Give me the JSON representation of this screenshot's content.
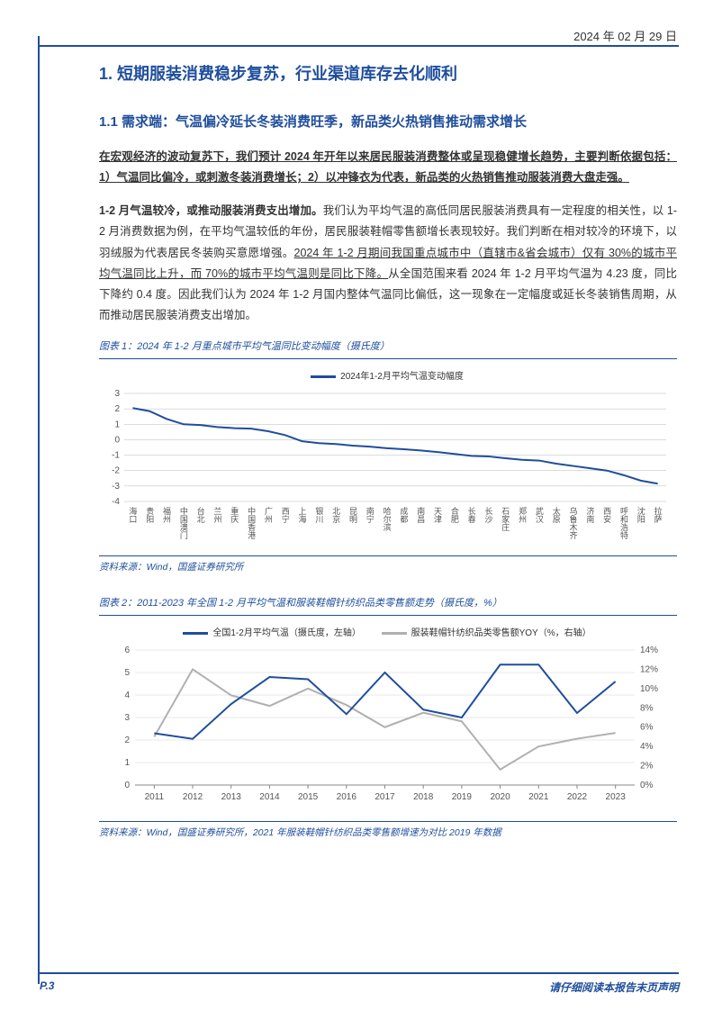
{
  "header": {
    "date": "2024 年 02 月 29 日"
  },
  "section1": {
    "number": "1.",
    "title": "短期服装消费稳步复苏，行业渠道库存去化顺利"
  },
  "section11": {
    "number": "1.1",
    "label": "需求端：",
    "title": "气温偏冷延长冬装消费旺季，新品类火热销售推动需求增长"
  },
  "para1": {
    "text_a": "在宏观经济的波动复苏下，我们预计 2024 年开年以来居民服装消费整体或呈现稳健增长趋势，主要判断依据包括：1）气温同比偏冷，或刺激冬装消费增长；2）以冲锋衣为代表，新品类的火热销售推动服装消费大盘走强。"
  },
  "para2": {
    "lead": "1-2 月气温较冷，或推动服装消费支出增加。",
    "body_a": "我们认为平均气温的高低同居民服装消费具有一定程度的相关性，以 1-2 月消费数据为例，在平均气温较低的年份，居民服装鞋帽零售额增长表现较好。我们判断在相对较冷的环境下，以羽绒服为代表居民冬装购买意愿增强。",
    "body_b": "2024 年 1-2 月期间我国重点城市中（直辖市&省会城市）仅有 30%的城市平均气温同比上升，而 70%的城市平均气温则是同比下降。",
    "body_c": "从全国范围来看 2024 年 1-2 月平均气温为 4.23 度，同比下降约 0.4 度。因此我们认为 2024 年 1-2 月国内整体气温同比偏低，这一现象在一定幅度或延长冬装销售周期，从而推动居民服装消费支出增加。"
  },
  "chart1": {
    "title": "图表 1：2024 年 1-2 月重点城市平均气温同比变动幅度（摄氏度）",
    "type": "line",
    "legend_label": "2024年1-2月平均气温变动幅度",
    "line_color": "#1f4e9c",
    "line_width": 2,
    "background_color": "#ffffff",
    "grid_color": "#b8b8b8",
    "ylim": [
      -4,
      3
    ],
    "ytick_step": 1,
    "yticks": [
      -4,
      -3,
      -2,
      -1,
      0,
      1,
      2,
      3
    ],
    "categories": [
      "海口",
      "贵阳",
      "福州",
      "中国澳门",
      "台北",
      "兰州",
      "重庆",
      "中国香港",
      "广州",
      "西宁",
      "上海",
      "银川",
      "北京",
      "昆明",
      "南宁",
      "哈尔滨",
      "成都",
      "南昌",
      "天津",
      "合肥",
      "长春",
      "长沙",
      "石家庄",
      "郑州",
      "武汉",
      "太原",
      "乌鲁木齐",
      "济南",
      "西安",
      "呼和浩特",
      "沈阳",
      "拉萨"
    ],
    "values": [
      2.05,
      1.85,
      1.35,
      1.0,
      0.95,
      0.82,
      0.75,
      0.72,
      0.55,
      0.3,
      -0.1,
      -0.22,
      -0.28,
      -0.38,
      -0.45,
      -0.55,
      -0.62,
      -0.7,
      -0.8,
      -0.92,
      -1.05,
      -1.08,
      -1.2,
      -1.3,
      -1.35,
      -1.55,
      -1.7,
      -1.85,
      -2.0,
      -2.3,
      -2.65,
      -2.85
    ],
    "axis_fontsize": 10,
    "label_fontsize": 9
  },
  "source1": {
    "text": "资料来源：Wind，国盛证券研究所"
  },
  "chart2": {
    "title": "图表 2：2011-2023 年全国 1-2 月平均气温和服装鞋帽针纺织品类零售额走势（摄氏度，%）",
    "type": "dual-line",
    "background_color": "#ffffff",
    "grid_color": "#d0d0d0",
    "legend": [
      {
        "label": "全国1-2月平均气温（摄氏度，左轴）",
        "color": "#1f4e9c"
      },
      {
        "label": "服装鞋帽针纺织品类零售额YOY（%，右轴）",
        "color": "#b0b0b0"
      }
    ],
    "line_width": 2,
    "categories": [
      "2011",
      "2012",
      "2013",
      "2014",
      "2015",
      "2016",
      "2017",
      "2018",
      "2019",
      "2020",
      "2021",
      "2022",
      "2023"
    ],
    "y_left": {
      "ylim": [
        0,
        6
      ],
      "ytick_step": 1,
      "yticks": [
        0,
        1,
        2,
        3,
        4,
        5,
        6
      ],
      "values": [
        2.3,
        2.05,
        3.6,
        4.8,
        4.7,
        3.15,
        5.0,
        3.35,
        3.0,
        5.35,
        5.35,
        3.2,
        4.6
      ],
      "color": "#1f4e9c"
    },
    "y_right": {
      "ylim": [
        0,
        14
      ],
      "ytick_step": 2,
      "yticks": [
        0,
        2,
        4,
        6,
        8,
        10,
        12,
        14
      ],
      "values": [
        5.0,
        12.0,
        9.3,
        8.2,
        10.0,
        8.3,
        6.0,
        7.5,
        6.6,
        1.6,
        4.0,
        4.8,
        5.4
      ],
      "color": "#b0b0b0"
    },
    "axis_fontsize": 10
  },
  "source2": {
    "text": "资料来源：Wind，国盛证券研究所，2021 年服装鞋帽针纺织品类零售额增速为对比 2019 年数据"
  },
  "footer": {
    "page": "P.3",
    "disclaimer": "请仔细阅读本报告末页声明"
  }
}
